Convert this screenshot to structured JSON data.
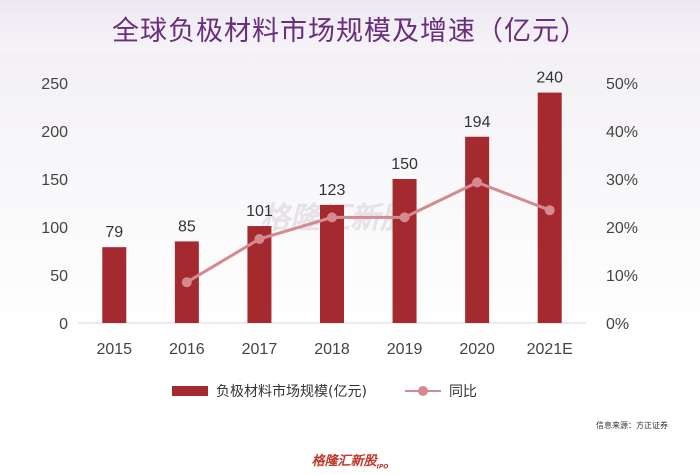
{
  "title": "全球负极材料市场规模及增速（亿元）",
  "source_note": "信息来源：方正证券",
  "brand": "格隆汇新股",
  "brand_sub": "IPO",
  "watermark": "格隆汇新股",
  "colors": {
    "bar": "#a52a2f",
    "line": "#d48a8f",
    "title": "#6a2f7c"
  },
  "chart_data": {
    "type": "bar",
    "categories": [
      "2015",
      "2016",
      "2017",
      "2018",
      "2019",
      "2020",
      "2021E"
    ],
    "series": [
      {
        "name": "负极材料市场规模(亿元)",
        "type": "bar",
        "axis": "left",
        "values": [
          79,
          85,
          101,
          123,
          150,
          194,
          240
        ]
      },
      {
        "name": "同比",
        "type": "line",
        "axis": "right",
        "values": [
          null,
          8.5,
          17.5,
          22.0,
          22.0,
          29.3,
          23.5
        ]
      }
    ],
    "y_left": {
      "ylim": [
        0,
        250
      ],
      "ticks": [
        "0",
        "50",
        "100",
        "150",
        "200",
        "250"
      ]
    },
    "y_right": {
      "ylim": [
        0,
        50
      ],
      "ticks": [
        "0%",
        "10%",
        "20%",
        "30%",
        "40%",
        "50%"
      ]
    },
    "data_labels": [
      "79",
      "85",
      "101",
      "123",
      "150",
      "194",
      "240"
    ],
    "grid": false,
    "legend_position": "bottom"
  }
}
